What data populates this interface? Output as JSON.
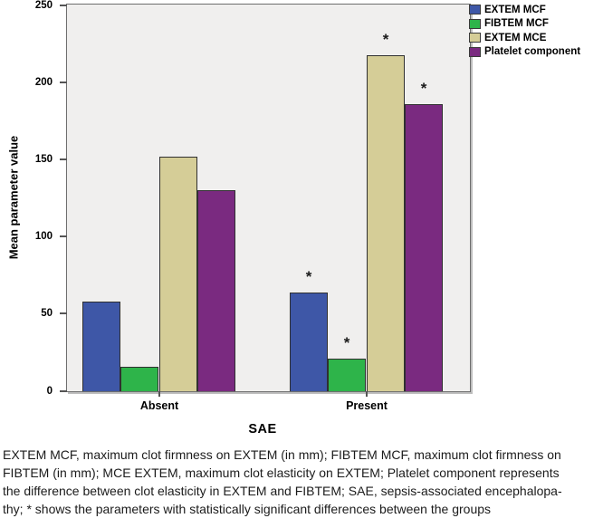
{
  "chart_data": {
    "type": "bar",
    "title": "",
    "categories": [
      "Absent",
      "Present"
    ],
    "series": [
      {
        "name": "EXTEM MCF",
        "color": "#3E57A7",
        "values": [
          58,
          64
        ]
      },
      {
        "name": "FIBTEM MCF",
        "color": "#2EB44A",
        "values": [
          16,
          21
        ]
      },
      {
        "name": "EXTEM MCE",
        "color": "#D5CD97",
        "values": [
          152,
          218
        ]
      },
      {
        "name": "Platelet component",
        "color": "#7A2A80",
        "values": [
          130,
          186
        ]
      }
    ],
    "xlabel": "SAE",
    "ylabel": "Mean parameter value",
    "ylim": [
      0,
      250
    ],
    "yticks": [
      0,
      50,
      100,
      150,
      200,
      250
    ],
    "grid": false,
    "legend_position": "top-right",
    "plot_background": "#f0efee",
    "significance_symbol": "*",
    "significance": [
      {
        "category": "Present",
        "series": "EXTEM MCF"
      },
      {
        "category": "Present",
        "series": "FIBTEM MCF"
      },
      {
        "category": "Present",
        "series": "EXTEM MCE"
      },
      {
        "category": "Present",
        "series": "Platelet component"
      }
    ]
  },
  "caption": {
    "lines": [
      "EXTEM MCF, maximum clot firmness on EXTEM (in mm); FIBTEM MCF, maximum clot firmness on",
      "FIBTEM (in mm); MCE EXTEM, maximum clot elasticity on EXTEM; Platelet component represents",
      "the difference between clot elasticity in EXTEM and FIBTEM; SAE, sepsis-associated encephalopa-",
      "thy; * shows the parameters with statistically significant differences between the groups"
    ]
  }
}
